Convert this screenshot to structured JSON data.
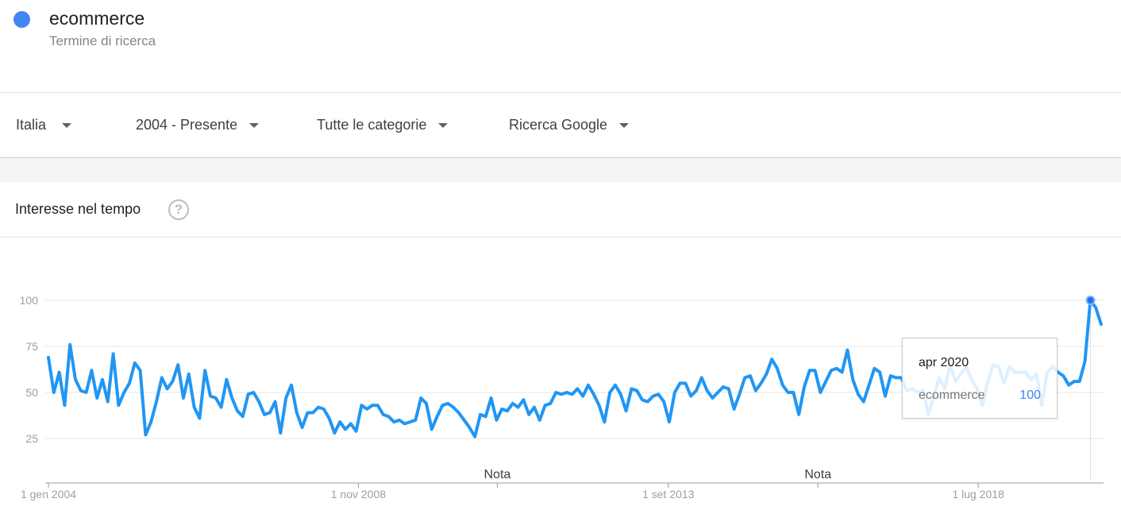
{
  "term": {
    "name": "ecommerce",
    "type": "Termine di ricerca",
    "color": "#4285f4"
  },
  "filters": [
    {
      "label": "Italia"
    },
    {
      "label": "2004 - Presente"
    },
    {
      "label": "Tutte le categorie"
    },
    {
      "label": "Ricerca Google"
    }
  ],
  "card": {
    "title": "Interesse nel tempo",
    "help_icon": "help-circle-icon"
  },
  "tooltip": {
    "date": "apr 2020",
    "term": "ecommerce",
    "value": "100"
  },
  "chart_data": {
    "type": "line",
    "title": "",
    "xlabel": "",
    "ylabel": "",
    "ylim": [
      0,
      100
    ],
    "yticks": [
      25,
      50,
      75,
      100
    ],
    "grid": true,
    "x_start": "2004-01",
    "x_end": "2020-06",
    "x_ticks": [
      {
        "date": "2004-01",
        "label": "1 gen 2004"
      },
      {
        "date": "2008-11",
        "label": "1 nov 2008"
      },
      {
        "date": "2013-09",
        "label": "1 set 2013"
      },
      {
        "date": "2018-07",
        "label": "1 lug 2018"
      }
    ],
    "notes": [
      {
        "date": "2011-01",
        "label": "Nota"
      },
      {
        "date": "2016-01",
        "label": "Nota"
      }
    ],
    "highlight": {
      "date": "2020-04",
      "value": 100
    },
    "series": [
      {
        "name": "ecommerce",
        "color": "#2196f3",
        "values": [
          69,
          50,
          61,
          43,
          76,
          57,
          51,
          50,
          62,
          47,
          57,
          45,
          71,
          43,
          50,
          55,
          66,
          62,
          27,
          34,
          45,
          58,
          52,
          56,
          65,
          47,
          60,
          42,
          36,
          62,
          48,
          47,
          42,
          57,
          47,
          40,
          37,
          49,
          50,
          45,
          38,
          39,
          45,
          28,
          47,
          54,
          39,
          31,
          39,
          39,
          42,
          41,
          36,
          28,
          34,
          30,
          33,
          29,
          43,
          41,
          43,
          43,
          38,
          37,
          34,
          35,
          33,
          34,
          35,
          47,
          44,
          30,
          37,
          43,
          44,
          42,
          39,
          35,
          31,
          26,
          38,
          37,
          47,
          35,
          41,
          40,
          44,
          42,
          46,
          38,
          42,
          35,
          43,
          44,
          50,
          49,
          50,
          49,
          52,
          48,
          54,
          49,
          43,
          34,
          50,
          54,
          49,
          40,
          52,
          51,
          46,
          45,
          48,
          49,
          45,
          34,
          50,
          55,
          55,
          48,
          51,
          58,
          51,
          47,
          50,
          53,
          52,
          41,
          49,
          58,
          59,
          51,
          55,
          60,
          68,
          63,
          54,
          50,
          50,
          38,
          53,
          62,
          62,
          50,
          56,
          62,
          63,
          61,
          73,
          57,
          49,
          45,
          54,
          63,
          61,
          48,
          59,
          58,
          58,
          51,
          52,
          50,
          51,
          38,
          48,
          58,
          52,
          65,
          56,
          60,
          64,
          57,
          52,
          43,
          56,
          65,
          64,
          55,
          64,
          61,
          61,
          61,
          57,
          60,
          43,
          61,
          64,
          61,
          59,
          54,
          56,
          56,
          67,
          100,
          96,
          87
        ]
      }
    ]
  }
}
